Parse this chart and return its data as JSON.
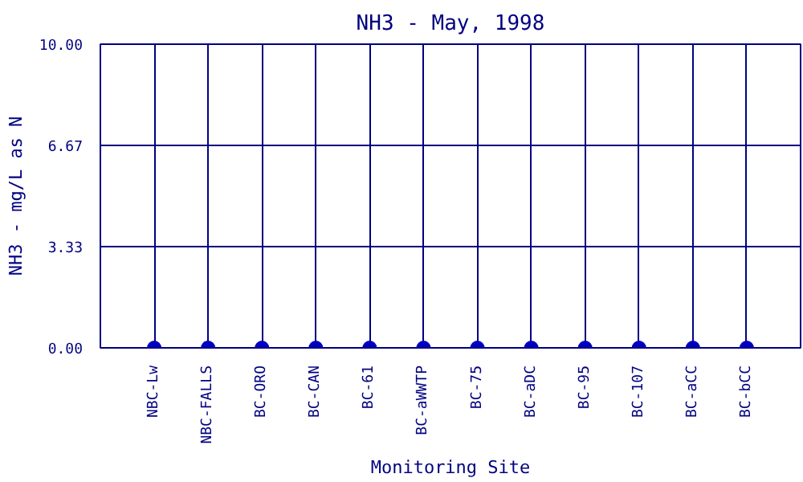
{
  "chart_data": {
    "type": "scatter",
    "title": "NH3 - May, 1998",
    "xlabel": "Monitoring Site",
    "ylabel": "NH3 - mg/L as N",
    "categories": [
      "NBC-Lw",
      "NBC-FALLS",
      "BC-ORO",
      "BC-CAN",
      "BC-61",
      "BC-aWWTP",
      "BC-75",
      "BC-aDC",
      "BC-95",
      "BC-107",
      "BC-aCC",
      "BC-bCC"
    ],
    "values": [
      0,
      0,
      0,
      0,
      0,
      0,
      0,
      0,
      0,
      0,
      0,
      0
    ],
    "color": "#0000c0",
    "marker": "circle",
    "grid": true,
    "ylim": [
      0,
      10
    ],
    "yticks": [
      {
        "value": 0,
        "label": "0.00"
      },
      {
        "value": 3.33,
        "label": "3.33"
      },
      {
        "value": 6.67,
        "label": "6.67"
      },
      {
        "value": 10,
        "label": "10.00"
      }
    ]
  }
}
